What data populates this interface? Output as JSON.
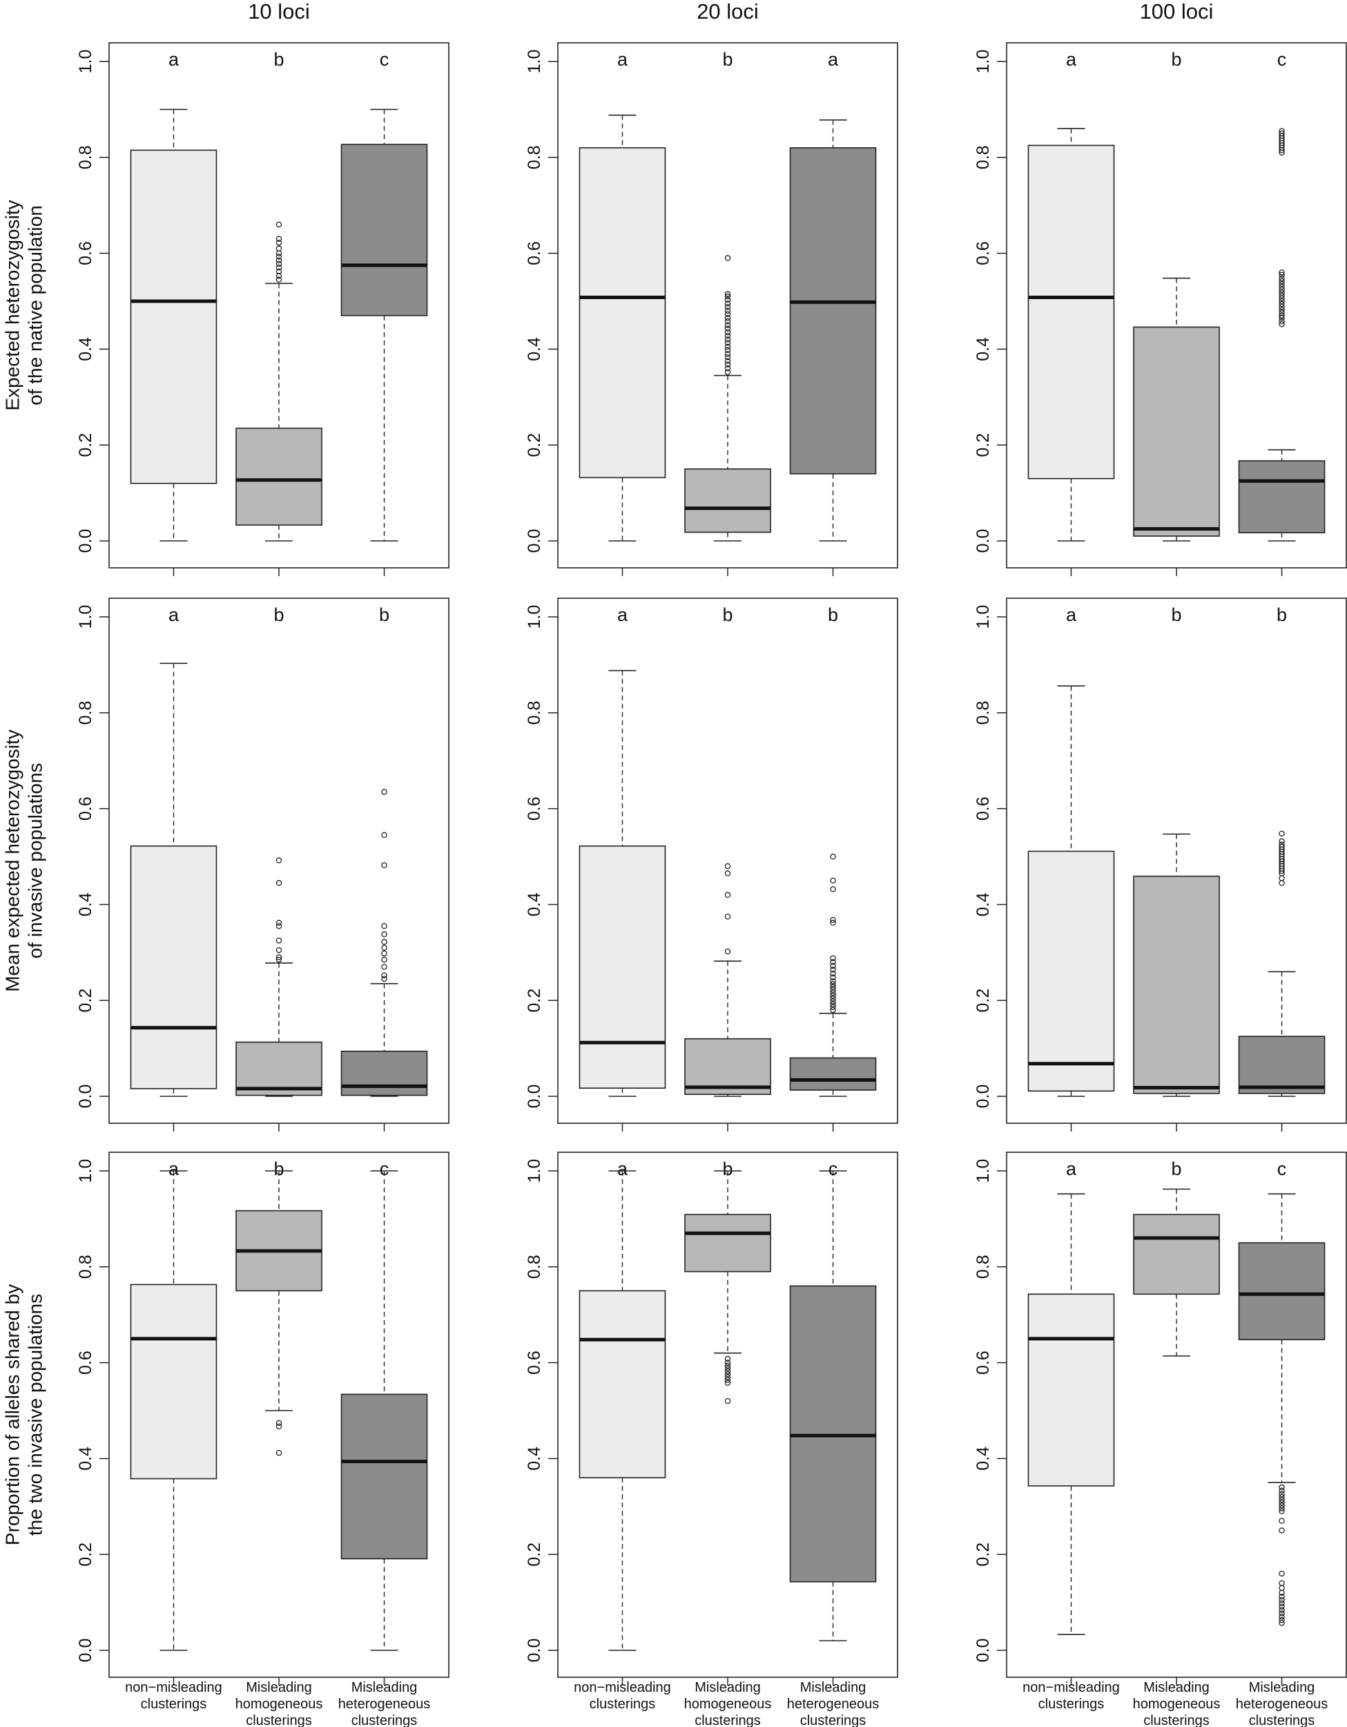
{
  "chart_data": {
    "type": "boxplot",
    "layout": "3x3 grid",
    "column_titles": [
      "10 loci",
      "20 loci",
      "100 loci"
    ],
    "row_ylabels": [
      [
        "Expected heterozygosity",
        "of the native population"
      ],
      [
        "Mean expected heterozygosity",
        "of invasive populations"
      ],
      [
        "Proportion of alleles shared by",
        "the two invasive populations"
      ]
    ],
    "categories": [
      [
        "non−misleading",
        "clusterings"
      ],
      [
        "Misleading",
        "homogeneous",
        "clusterings"
      ],
      [
        "Misleading",
        "heterogeneous",
        "clusterings"
      ]
    ],
    "category_colors": [
      "#ececec",
      "#b8b8b8",
      "#8c8c8c"
    ],
    "ylim": [
      0,
      1
    ],
    "yticks": [
      "0.0",
      "0.2",
      "0.4",
      "0.6",
      "0.8",
      "1.0"
    ],
    "panels": [
      [
        {
          "letters": [
            "a",
            "b",
            "c"
          ],
          "boxes": [
            {
              "whisker_low": 0.0,
              "q1": 0.12,
              "median": 0.5,
              "q3": 0.815,
              "whisker_high": 0.9,
              "outliers": []
            },
            {
              "whisker_low": 0.0,
              "q1": 0.033,
              "median": 0.127,
              "q3": 0.235,
              "whisker_high": 0.537,
              "outliers": [
                0.545,
                0.553,
                0.562,
                0.57,
                0.578,
                0.585,
                0.593,
                0.6,
                0.61,
                0.622,
                0.63,
                0.66
              ]
            },
            {
              "whisker_low": 0.0,
              "q1": 0.47,
              "median": 0.575,
              "q3": 0.827,
              "whisker_high": 0.9,
              "outliers": []
            }
          ]
        },
        {
          "letters": [
            "a",
            "b",
            "a"
          ],
          "boxes": [
            {
              "whisker_low": 0.0,
              "q1": 0.132,
              "median": 0.508,
              "q3": 0.82,
              "whisker_high": 0.888,
              "outliers": []
            },
            {
              "whisker_low": 0.0,
              "q1": 0.018,
              "median": 0.068,
              "q3": 0.15,
              "whisker_high": 0.345,
              "outliers": [
                0.352,
                0.36,
                0.368,
                0.375,
                0.383,
                0.39,
                0.398,
                0.405,
                0.413,
                0.42,
                0.428,
                0.435,
                0.443,
                0.45,
                0.458,
                0.465,
                0.473,
                0.48,
                0.488,
                0.495,
                0.503,
                0.51,
                0.515,
                0.59
              ]
            },
            {
              "whisker_low": 0.0,
              "q1": 0.14,
              "median": 0.498,
              "q3": 0.82,
              "whisker_high": 0.878,
              "outliers": []
            }
          ]
        },
        {
          "letters": [
            "a",
            "b",
            "c"
          ],
          "boxes": [
            {
              "whisker_low": 0.0,
              "q1": 0.13,
              "median": 0.508,
              "q3": 0.825,
              "whisker_high": 0.86,
              "outliers": []
            },
            {
              "whisker_low": 0.0,
              "q1": 0.01,
              "median": 0.025,
              "q3": 0.446,
              "whisker_high": 0.548,
              "outliers": []
            },
            {
              "whisker_low": 0.0,
              "q1": 0.017,
              "median": 0.125,
              "q3": 0.167,
              "whisker_high": 0.19,
              "outliers": [
                0.452,
                0.458,
                0.465,
                0.47,
                0.476,
                0.482,
                0.488,
                0.494,
                0.5,
                0.506,
                0.512,
                0.518,
                0.524,
                0.53,
                0.536,
                0.542,
                0.548,
                0.555,
                0.56,
                0.81,
                0.815,
                0.82,
                0.825,
                0.83,
                0.835,
                0.84,
                0.845,
                0.85,
                0.855
              ]
            }
          ]
        }
      ],
      [
        {
          "letters": [
            "a",
            "b",
            "b"
          ],
          "boxes": [
            {
              "whisker_low": 0.0,
              "q1": 0.016,
              "median": 0.143,
              "q3": 0.522,
              "whisker_high": 0.903,
              "outliers": []
            },
            {
              "whisker_low": 0.0,
              "q1": 0.002,
              "median": 0.016,
              "q3": 0.113,
              "whisker_high": 0.278,
              "outliers": [
                0.285,
                0.29,
                0.305,
                0.325,
                0.355,
                0.362,
                0.445,
                0.492
              ]
            },
            {
              "whisker_low": 0.0,
              "q1": 0.002,
              "median": 0.021,
              "q3": 0.094,
              "whisker_high": 0.235,
              "outliers": [
                0.245,
                0.252,
                0.27,
                0.285,
                0.298,
                0.31,
                0.322,
                0.338,
                0.355,
                0.482,
                0.545,
                0.635
              ]
            }
          ]
        },
        {
          "letters": [
            "a",
            "b",
            "b"
          ],
          "boxes": [
            {
              "whisker_low": 0.0,
              "q1": 0.017,
              "median": 0.112,
              "q3": 0.522,
              "whisker_high": 0.888,
              "outliers": []
            },
            {
              "whisker_low": 0.0,
              "q1": 0.004,
              "median": 0.019,
              "q3": 0.12,
              "whisker_high": 0.282,
              "outliers": [
                0.302,
                0.375,
                0.42,
                0.465,
                0.48
              ]
            },
            {
              "whisker_low": 0.0,
              "q1": 0.013,
              "median": 0.034,
              "q3": 0.08,
              "whisker_high": 0.173,
              "outliers": [
                0.18,
                0.186,
                0.192,
                0.198,
                0.204,
                0.21,
                0.216,
                0.222,
                0.228,
                0.234,
                0.24,
                0.248,
                0.256,
                0.264,
                0.272,
                0.28,
                0.288,
                0.362,
                0.368,
                0.432,
                0.45,
                0.5
              ]
            }
          ]
        },
        {
          "letters": [
            "a",
            "b",
            "b"
          ],
          "boxes": [
            {
              "whisker_low": 0.0,
              "q1": 0.011,
              "median": 0.068,
              "q3": 0.511,
              "whisker_high": 0.856,
              "outliers": []
            },
            {
              "whisker_low": 0.0,
              "q1": 0.006,
              "median": 0.018,
              "q3": 0.459,
              "whisker_high": 0.547,
              "outliers": []
            },
            {
              "whisker_low": 0.0,
              "q1": 0.006,
              "median": 0.019,
              "q3": 0.125,
              "whisker_high": 0.26,
              "outliers": [
                0.445,
                0.455,
                0.465,
                0.47,
                0.475,
                0.48,
                0.485,
                0.49,
                0.495,
                0.5,
                0.505,
                0.51,
                0.515,
                0.52,
                0.525,
                0.532,
                0.548
              ]
            }
          ]
        }
      ],
      [
        {
          "letters": [
            "a",
            "b",
            "c"
          ],
          "boxes": [
            {
              "whisker_low": 0.0,
              "q1": 0.358,
              "median": 0.65,
              "q3": 0.763,
              "whisker_high": 1.0,
              "outliers": []
            },
            {
              "whisker_low": 0.5,
              "q1": 0.75,
              "median": 0.833,
              "q3": 0.917,
              "whisker_high": 1.0,
              "outliers": [
                0.467,
                0.474,
                0.412
              ]
            },
            {
              "whisker_low": 0.0,
              "q1": 0.191,
              "median": 0.394,
              "q3": 0.534,
              "whisker_high": 1.0,
              "outliers": []
            }
          ]
        },
        {
          "letters": [
            "a",
            "b",
            "c"
          ],
          "boxes": [
            {
              "whisker_low": 0.0,
              "q1": 0.36,
              "median": 0.648,
              "q3": 0.75,
              "whisker_high": 1.0,
              "outliers": []
            },
            {
              "whisker_low": 0.62,
              "q1": 0.79,
              "median": 0.87,
              "q3": 0.909,
              "whisker_high": 1.0,
              "outliers": [
                0.608,
                0.6,
                0.594,
                0.588,
                0.582,
                0.576,
                0.57,
                0.564,
                0.558,
                0.52
              ]
            },
            {
              "whisker_low": 0.02,
              "q1": 0.143,
              "median": 0.448,
              "q3": 0.76,
              "whisker_high": 1.0,
              "outliers": []
            }
          ]
        },
        {
          "letters": [
            "a",
            "b",
            "c"
          ],
          "boxes": [
            {
              "whisker_low": 0.033,
              "q1": 0.343,
              "median": 0.65,
              "q3": 0.743,
              "whisker_high": 0.952,
              "outliers": []
            },
            {
              "whisker_low": 0.614,
              "q1": 0.743,
              "median": 0.86,
              "q3": 0.909,
              "whisker_high": 0.962,
              "outliers": []
            },
            {
              "whisker_low": 0.35,
              "q1": 0.648,
              "median": 0.743,
              "q3": 0.85,
              "whisker_high": 0.952,
              "outliers": [
                0.34,
                0.333,
                0.326,
                0.32,
                0.314,
                0.308,
                0.302,
                0.296,
                0.29,
                0.27,
                0.25,
                0.16,
                0.14,
                0.13,
                0.12,
                0.112,
                0.105,
                0.098,
                0.091,
                0.084,
                0.077,
                0.07,
                0.063,
                0.057
              ]
            }
          ]
        }
      ]
    ]
  }
}
